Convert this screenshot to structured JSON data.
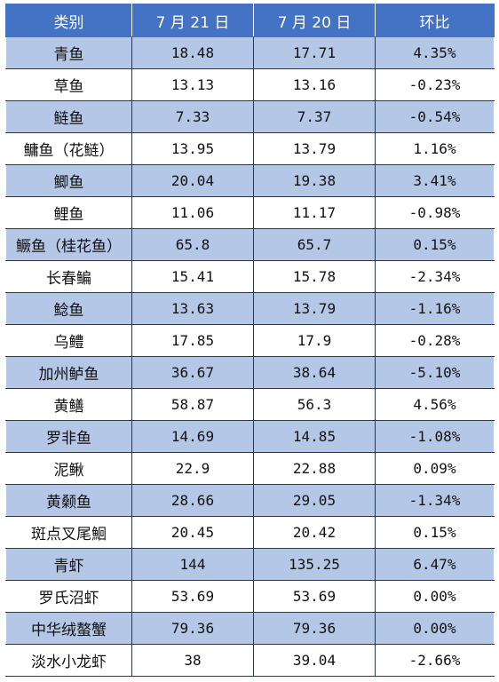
{
  "table": {
    "headers": [
      "类别",
      "7 月 21 日",
      "7 月 20 日",
      "环比"
    ],
    "rows": [
      [
        "青鱼",
        "18.48",
        "17.71",
        "4.35%"
      ],
      [
        "草鱼",
        "13.13",
        "13.16",
        "-0.23%"
      ],
      [
        "鲢鱼",
        "7.33",
        "7.37",
        "-0.54%"
      ],
      [
        "鳙鱼（花鲢）",
        "13.95",
        "13.79",
        "1.16%"
      ],
      [
        "鲫鱼",
        "20.04",
        "19.38",
        "3.41%"
      ],
      [
        "鲤鱼",
        "11.06",
        "11.17",
        "-0.98%"
      ],
      [
        "鳜鱼（桂花鱼）",
        "65.8",
        "65.7",
        "0.15%"
      ],
      [
        "长春鳊",
        "15.41",
        "15.78",
        "-2.34%"
      ],
      [
        "鲶鱼",
        "13.63",
        "13.79",
        "-1.16%"
      ],
      [
        "乌鳢",
        "17.85",
        "17.9",
        "-0.28%"
      ],
      [
        "加州鲈鱼",
        "36.67",
        "38.64",
        "-5.10%"
      ],
      [
        "黄鳝",
        "58.87",
        "56.3",
        "4.56%"
      ],
      [
        "罗非鱼",
        "14.69",
        "14.85",
        "-1.08%"
      ],
      [
        "泥鳅",
        "22.9",
        "22.88",
        "0.09%"
      ],
      [
        "黄颡鱼",
        "28.66",
        "29.05",
        "-1.34%"
      ],
      [
        "斑点叉尾鮰",
        "20.45",
        "20.42",
        "0.15%"
      ],
      [
        "青虾",
        "144",
        "135.25",
        "6.47%"
      ],
      [
        "罗氏沼虾",
        "53.69",
        "53.69",
        "0.00%"
      ],
      [
        "中华绒螯蟹",
        "79.36",
        "79.36",
        "0.00%"
      ],
      [
        "淡水小龙虾",
        "38",
        "39.04",
        "-2.66%"
      ]
    ]
  },
  "colors": {
    "header_bg": "#4472c4",
    "band_bg": "#b4c7e7",
    "border": "#1f3864"
  }
}
